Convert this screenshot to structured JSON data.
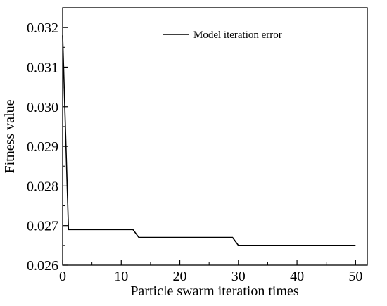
{
  "chart_data": {
    "type": "line",
    "title": "",
    "xlabel": "Particle swarm iteration times",
    "ylabel": "Fitness value",
    "xlim": [
      0,
      52
    ],
    "ylim": [
      0.026,
      0.0325
    ],
    "x_ticks": [
      0,
      10,
      20,
      30,
      40,
      50
    ],
    "x_tick_labels": [
      "0",
      "10",
      "20",
      "30",
      "40",
      "50"
    ],
    "y_ticks": [
      0.026,
      0.027,
      0.028,
      0.029,
      0.03,
      0.031,
      0.032
    ],
    "y_tick_labels": [
      "0.026",
      "0.027",
      "0.028",
      "0.029",
      "0.030",
      "0.031",
      "0.032"
    ],
    "grid": false,
    "legend_position": "top-right",
    "series": [
      {
        "name": "Model iteration error",
        "color": "#000000",
        "x": [
          0,
          1,
          12,
          13,
          29,
          30,
          50
        ],
        "y": [
          0.0318,
          0.0269,
          0.0269,
          0.0267,
          0.0267,
          0.0265,
          0.0265
        ]
      }
    ]
  }
}
